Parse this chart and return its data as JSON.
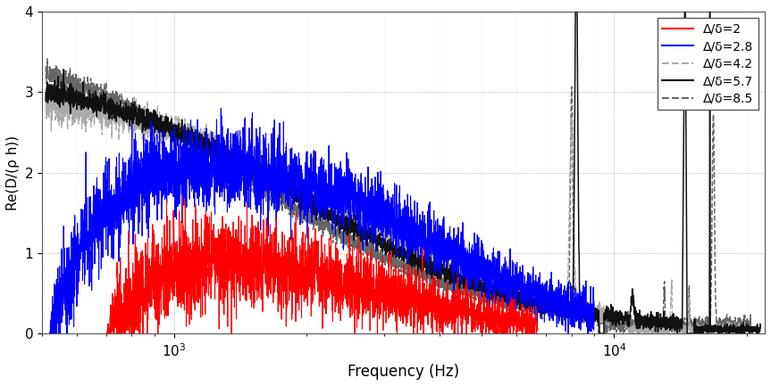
{
  "xlabel": "Frequency (Hz)",
  "ylabel": "Re(D/(ρ h))",
  "xlim": [
    500,
    22000
  ],
  "ylim": [
    0,
    4
  ],
  "yticks": [
    0,
    1,
    2,
    3,
    4
  ],
  "legend_labels": [
    "Δ/δ=2",
    "Δ/δ=2.8",
    "Δ/δ=4.2",
    "Δ/δ=5.7",
    "Δ/δ=8.5"
  ],
  "colors": [
    "#ff0000",
    "#0000ff",
    "#aaaaaa",
    "#111111",
    "#666666"
  ],
  "linestyles": [
    "solid",
    "solid",
    "dashed",
    "solid",
    "dashed"
  ],
  "linewidths": [
    0.8,
    0.8,
    1.0,
    1.1,
    1.1
  ],
  "background_color": "#ffffff"
}
